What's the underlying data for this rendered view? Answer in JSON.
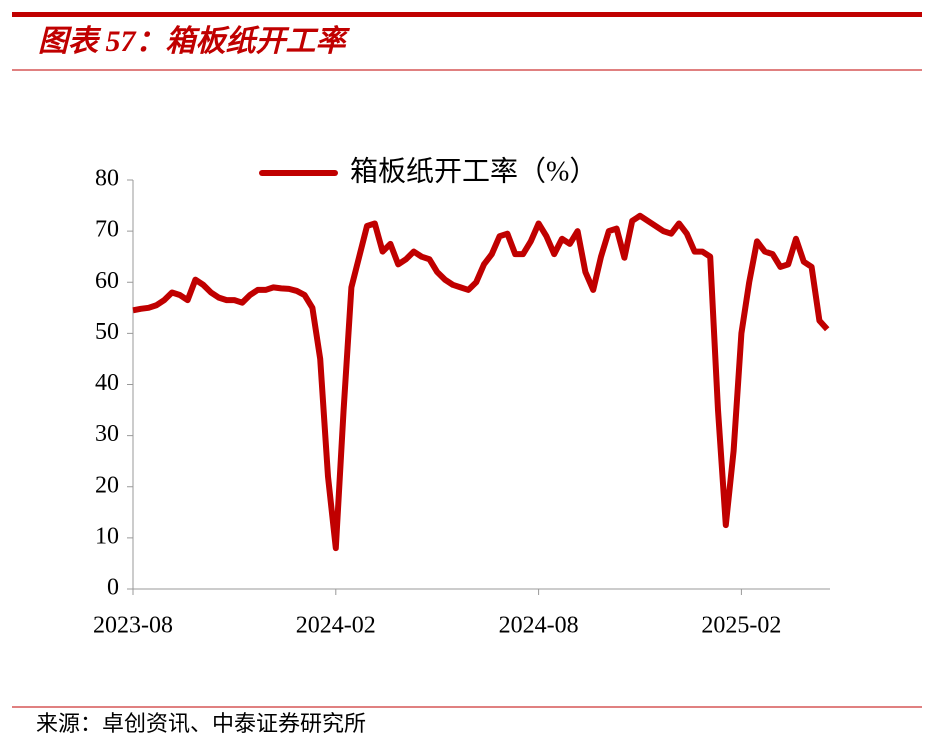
{
  "header": {
    "title": "图表 57：箱板纸开工率"
  },
  "chart_data": {
    "type": "line",
    "categories": [
      "2023-08",
      null,
      null,
      null,
      null,
      null,
      null,
      null,
      null,
      null,
      null,
      null,
      null,
      null,
      null,
      null,
      null,
      null,
      null,
      null,
      null,
      null,
      null,
      null,
      null,
      null,
      "2024-02",
      null,
      null,
      null,
      null,
      null,
      null,
      null,
      null,
      null,
      null,
      null,
      null,
      null,
      null,
      null,
      null,
      null,
      null,
      null,
      null,
      null,
      null,
      null,
      null,
      null,
      "2024-08",
      null,
      null,
      null,
      null,
      null,
      null,
      null,
      null,
      null,
      null,
      null,
      null,
      null,
      null,
      null,
      null,
      null,
      null,
      null,
      null,
      null,
      null,
      null,
      null,
      null,
      "2025-02",
      null,
      null,
      null,
      null,
      null,
      null,
      null,
      null,
      null,
      null,
      null
    ],
    "series": [
      {
        "name": "箱板纸开工率（%）",
        "color": "#c00000",
        "values": [
          54.5,
          54.8,
          55,
          55.5,
          56.5,
          58,
          57.5,
          56.5,
          60.5,
          59.5,
          58,
          57,
          56.5,
          56.5,
          56,
          57.5,
          58.5,
          58.5,
          59,
          58.8,
          58.7,
          58.3,
          57.5,
          55,
          45,
          22,
          8,
          35,
          59,
          65,
          71,
          71.5,
          66,
          67.5,
          63.5,
          64.5,
          66,
          65,
          64.5,
          62,
          60.5,
          59.5,
          59,
          58.5,
          60,
          63.5,
          65.5,
          69,
          69.5,
          65.5,
          65.5,
          68,
          71.5,
          69,
          65.5,
          68.5,
          67.5,
          70,
          62,
          58.5,
          65,
          70,
          70.5,
          64.8,
          72,
          73,
          72,
          71,
          70,
          69.5,
          71.5,
          69.5,
          66,
          66,
          65,
          35,
          12.5,
          27,
          50,
          60,
          68,
          66,
          65.5,
          63,
          63.5,
          68.5,
          64,
          63,
          52.5,
          50.8
        ]
      }
    ],
    "ylim": [
      0,
      80
    ],
    "yticks": [
      0,
      10,
      20,
      30,
      40,
      50,
      60,
      70,
      80
    ]
  },
  "footer": {
    "source": "来源：卓创资讯、中泰证券研究所"
  }
}
